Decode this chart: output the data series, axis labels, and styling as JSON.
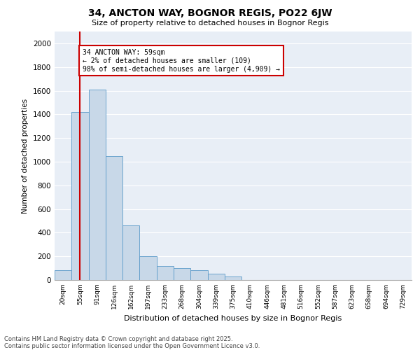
{
  "title1": "34, ANCTON WAY, BOGNOR REGIS, PO22 6JW",
  "title2": "Size of property relative to detached houses in Bognor Regis",
  "xlabel": "Distribution of detached houses by size in Bognor Regis",
  "ylabel": "Number of detached properties",
  "footnote1": "Contains HM Land Registry data © Crown copyright and database right 2025.",
  "footnote2": "Contains public sector information licensed under the Open Government Licence v3.0.",
  "annotation_title": "34 ANCTON WAY: 59sqm",
  "annotation_line1": "← 2% of detached houses are smaller (109)",
  "annotation_line2": "98% of semi-detached houses are larger (4,909) →",
  "bar_color": "#c8d8e8",
  "bar_edge_color": "#5a9ac8",
  "vline_color": "#cc0000",
  "annotation_box_color": "#cc0000",
  "bg_color": "#e8eef6",
  "categories": [
    "20sqm",
    "55sqm",
    "91sqm",
    "126sqm",
    "162sqm",
    "197sqm",
    "233sqm",
    "268sqm",
    "304sqm",
    "339sqm",
    "375sqm",
    "410sqm",
    "446sqm",
    "481sqm",
    "516sqm",
    "552sqm",
    "587sqm",
    "623sqm",
    "658sqm",
    "694sqm",
    "729sqm"
  ],
  "values": [
    80,
    1420,
    1610,
    1050,
    460,
    200,
    120,
    100,
    80,
    55,
    30,
    0,
    0,
    0,
    0,
    0,
    0,
    0,
    0,
    0,
    0
  ],
  "ylim": [
    0,
    2100
  ],
  "yticks": [
    0,
    200,
    400,
    600,
    800,
    1000,
    1200,
    1400,
    1600,
    1800,
    2000
  ]
}
